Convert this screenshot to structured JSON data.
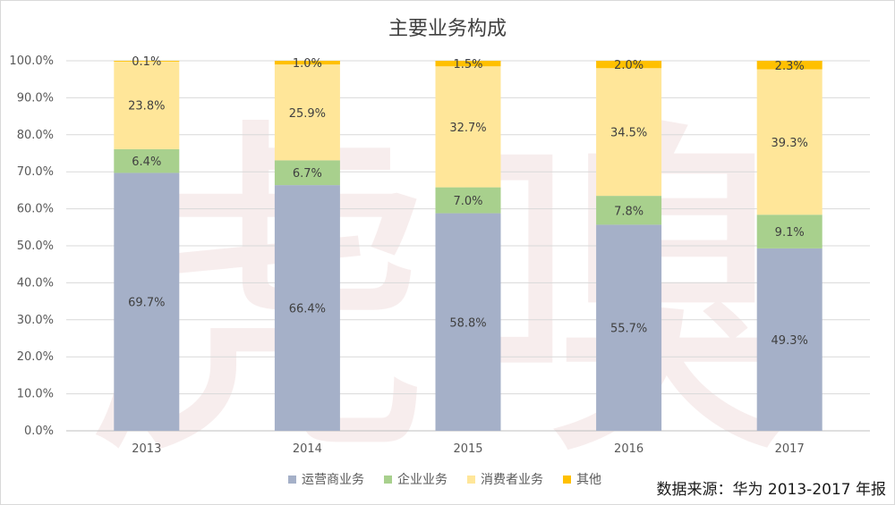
{
  "chart_data": {
    "type": "bar",
    "stacked": true,
    "title": "主要业务构成",
    "categories": [
      "2013",
      "2014",
      "2015",
      "2016",
      "2017"
    ],
    "ylim": [
      0,
      100
    ],
    "y_ticks": [
      "0.0%",
      "10.0%",
      "20.0%",
      "30.0%",
      "40.0%",
      "50.0%",
      "60.0%",
      "70.0%",
      "80.0%",
      "90.0%",
      "100.0%"
    ],
    "grid": true,
    "legend_position": "bottom",
    "series": [
      {
        "name": "运营商业务",
        "color": "#a5b0c8",
        "values": [
          69.7,
          66.4,
          58.8,
          55.7,
          49.3
        ],
        "labels": [
          "69.7%",
          "66.4%",
          "58.8%",
          "55.7%",
          "49.3%"
        ]
      },
      {
        "name": "企业业务",
        "color": "#a8d08d",
        "values": [
          6.4,
          6.7,
          7.0,
          7.8,
          9.1
        ],
        "labels": [
          "6.4%",
          "6.7%",
          "7.0%",
          "7.8%",
          "9.1%"
        ]
      },
      {
        "name": "消费者业务",
        "color": "#ffe699",
        "values": [
          23.8,
          25.9,
          32.7,
          34.5,
          39.3
        ],
        "labels": [
          "23.8%",
          "25.9%",
          "32.7%",
          "34.5%",
          "39.3%"
        ]
      },
      {
        "name": "其他",
        "color": "#ffc000",
        "values": [
          0.1,
          1.0,
          1.5,
          2.0,
          2.3
        ],
        "labels": [
          "0.1%",
          "1.0%",
          "1.5%",
          "2.0%",
          "2.3%"
        ]
      }
    ],
    "source": "数据来源：华为 2013-2017 年报",
    "watermark": "虎嗅"
  }
}
